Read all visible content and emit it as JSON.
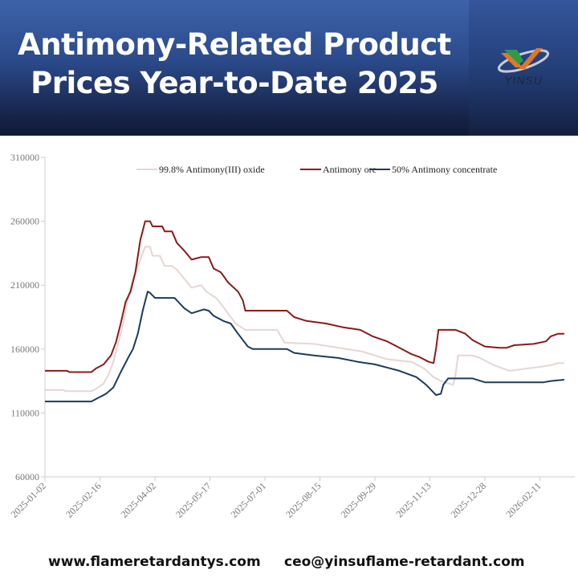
{
  "banner": {
    "title_line1": "Antimony-Related Product",
    "title_line2": "Prices Year-to-Date 2025",
    "logo_text": "YINSU",
    "logo_icon": "yinsu-v-logo-icon"
  },
  "footer": {
    "website": "www.flameretardantys.com",
    "email": "ceo@yinsuflame-retardant.com"
  },
  "chart_data": {
    "type": "line",
    "title": "",
    "xlabel": "",
    "ylabel": "",
    "ylim": [
      60000,
      310000
    ],
    "yticks": [
      60000,
      110000,
      160000,
      210000,
      260000,
      310000
    ],
    "xticks": [
      "2025-01-02",
      "2025-02-16",
      "2025-04-02",
      "2025-05-17",
      "2025-07-01",
      "2025-08-15",
      "2025-09-29",
      "2025-11-13",
      "2025-12-28",
      "2026-02-11"
    ],
    "x_day_range": [
      0,
      425
    ],
    "grid": false,
    "legend_position": "top",
    "series": [
      {
        "name": "99.8% Antimony(III) oxide",
        "color": "#e6d6d3",
        "points": [
          [
            0,
            128000
          ],
          [
            15,
            128000
          ],
          [
            17,
            127000
          ],
          [
            38,
            127000
          ],
          [
            42,
            129000
          ],
          [
            48,
            133000
          ],
          [
            52,
            140000
          ],
          [
            56,
            150000
          ],
          [
            60,
            165000
          ],
          [
            64,
            180000
          ],
          [
            68,
            200000
          ],
          [
            72,
            215000
          ],
          [
            78,
            230000
          ],
          [
            82,
            240000
          ],
          [
            86,
            240000
          ],
          [
            88,
            233000
          ],
          [
            94,
            233000
          ],
          [
            98,
            225000
          ],
          [
            104,
            225000
          ],
          [
            108,
            222000
          ],
          [
            114,
            215000
          ],
          [
            120,
            208000
          ],
          [
            128,
            210000
          ],
          [
            132,
            205000
          ],
          [
            140,
            200000
          ],
          [
            146,
            193000
          ],
          [
            152,
            185000
          ],
          [
            156,
            180000
          ],
          [
            164,
            175000
          ],
          [
            190,
            175000
          ],
          [
            196,
            165000
          ],
          [
            220,
            164000
          ],
          [
            260,
            158000
          ],
          [
            280,
            152000
          ],
          [
            300,
            150000
          ],
          [
            310,
            145000
          ],
          [
            318,
            138000
          ],
          [
            324,
            135000
          ],
          [
            334,
            132000
          ],
          [
            336,
            140000
          ],
          [
            338,
            155000
          ],
          [
            350,
            155000
          ],
          [
            356,
            153000
          ],
          [
            366,
            148000
          ],
          [
            380,
            143000
          ],
          [
            396,
            145000
          ],
          [
            412,
            147000
          ],
          [
            420,
            149000
          ],
          [
            425,
            149000
          ]
        ]
      },
      {
        "name": "Antimony ore",
        "color": "#8b1a1a",
        "points": [
          [
            0,
            143000
          ],
          [
            18,
            143000
          ],
          [
            20,
            142000
          ],
          [
            38,
            142000
          ],
          [
            42,
            145000
          ],
          [
            48,
            148000
          ],
          [
            54,
            155000
          ],
          [
            58,
            165000
          ],
          [
            62,
            180000
          ],
          [
            66,
            197000
          ],
          [
            70,
            205000
          ],
          [
            74,
            220000
          ],
          [
            78,
            245000
          ],
          [
            82,
            260000
          ],
          [
            86,
            260000
          ],
          [
            88,
            256000
          ],
          [
            96,
            256000
          ],
          [
            98,
            252000
          ],
          [
            104,
            252000
          ],
          [
            108,
            243000
          ],
          [
            114,
            237000
          ],
          [
            120,
            230000
          ],
          [
            128,
            232000
          ],
          [
            134,
            232000
          ],
          [
            138,
            223000
          ],
          [
            144,
            220000
          ],
          [
            150,
            212000
          ],
          [
            158,
            205000
          ],
          [
            162,
            198000
          ],
          [
            164,
            190000
          ],
          [
            198,
            190000
          ],
          [
            204,
            185000
          ],
          [
            214,
            182000
          ],
          [
            230,
            180000
          ],
          [
            244,
            177000
          ],
          [
            258,
            175000
          ],
          [
            268,
            170000
          ],
          [
            280,
            166000
          ],
          [
            292,
            160000
          ],
          [
            300,
            156000
          ],
          [
            306,
            154000
          ],
          [
            314,
            150000
          ],
          [
            318,
            149000
          ],
          [
            320,
            160000
          ],
          [
            322,
            175000
          ],
          [
            336,
            175000
          ],
          [
            344,
            172000
          ],
          [
            350,
            167000
          ],
          [
            360,
            162000
          ],
          [
            372,
            161000
          ],
          [
            378,
            161000
          ],
          [
            384,
            163000
          ],
          [
            400,
            164000
          ],
          [
            410,
            166000
          ],
          [
            414,
            170000
          ],
          [
            420,
            172000
          ],
          [
            425,
            172000
          ]
        ]
      },
      {
        "name": "50% Antimony concentrate",
        "color": "#1d3a5e",
        "points": [
          [
            0,
            119000
          ],
          [
            38,
            119000
          ],
          [
            44,
            122000
          ],
          [
            50,
            125000
          ],
          [
            56,
            130000
          ],
          [
            62,
            142000
          ],
          [
            68,
            153000
          ],
          [
            72,
            160000
          ],
          [
            76,
            172000
          ],
          [
            80,
            190000
          ],
          [
            84,
            205000
          ],
          [
            86,
            204000
          ],
          [
            90,
            200000
          ],
          [
            106,
            200000
          ],
          [
            110,
            196000
          ],
          [
            114,
            192000
          ],
          [
            120,
            188000
          ],
          [
            130,
            191000
          ],
          [
            134,
            190000
          ],
          [
            138,
            186000
          ],
          [
            146,
            182000
          ],
          [
            152,
            180000
          ],
          [
            158,
            172000
          ],
          [
            162,
            167000
          ],
          [
            166,
            162000
          ],
          [
            170,
            160000
          ],
          [
            198,
            160000
          ],
          [
            204,
            157000
          ],
          [
            220,
            155000
          ],
          [
            240,
            153000
          ],
          [
            256,
            150000
          ],
          [
            270,
            148000
          ],
          [
            282,
            145000
          ],
          [
            290,
            143000
          ],
          [
            304,
            138000
          ],
          [
            312,
            132000
          ],
          [
            316,
            128000
          ],
          [
            320,
            124000
          ],
          [
            324,
            125000
          ],
          [
            326,
            132000
          ],
          [
            330,
            137000
          ],
          [
            336,
            137000
          ],
          [
            350,
            137000
          ],
          [
            360,
            134000
          ],
          [
            376,
            134000
          ],
          [
            396,
            134000
          ],
          [
            408,
            134000
          ],
          [
            414,
            135000
          ],
          [
            425,
            136000
          ]
        ]
      }
    ]
  }
}
